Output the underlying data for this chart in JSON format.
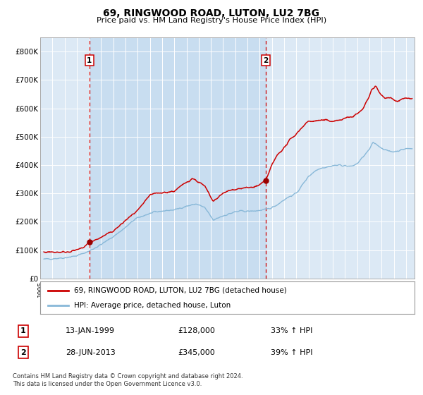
{
  "title": "69, RINGWOOD ROAD, LUTON, LU2 7BG",
  "subtitle": "Price paid vs. HM Land Registry's House Price Index (HPI)",
  "title_fontsize": 10.5,
  "subtitle_fontsize": 8.5,
  "background_color": "#ffffff",
  "plot_bg_color": "#dce9f5",
  "grid_color": "#ffffff",
  "red_line_color": "#cc0000",
  "blue_line_color": "#88b8d8",
  "marker_color": "#990000",
  "vline_color": "#cc0000",
  "shade_color": "#c8ddf0",
  "ylabel_ticks": [
    "£0",
    "£100K",
    "£200K",
    "£300K",
    "£400K",
    "£500K",
    "£600K",
    "£700K",
    "£800K"
  ],
  "ytick_vals": [
    0,
    100000,
    200000,
    300000,
    400000,
    500000,
    600000,
    700000,
    800000
  ],
  "ylim": [
    0,
    850000
  ],
  "sale1_year": 1999.04,
  "sale1_price": 128000,
  "sale2_year": 2013.49,
  "sale2_price": 345000,
  "legend_label_red": "69, RINGWOOD ROAD, LUTON, LU2 7BG (detached house)",
  "legend_label_blue": "HPI: Average price, detached house, Luton",
  "table_rows": [
    [
      "1",
      "13-JAN-1999",
      "£128,000",
      "33% ↑ HPI"
    ],
    [
      "2",
      "28-JUN-2013",
      "£345,000",
      "39% ↑ HPI"
    ]
  ],
  "footer": "Contains HM Land Registry data © Crown copyright and database right 2024.\nThis data is licensed under the Open Government Licence v3.0.",
  "xmin": 1995.3,
  "xmax": 2025.7
}
